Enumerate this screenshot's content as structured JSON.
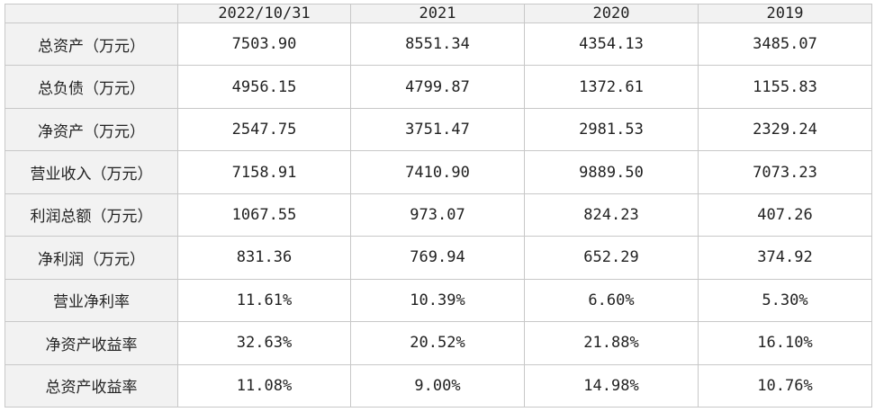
{
  "table": {
    "corner": "",
    "columns": [
      "2022/10/31",
      "2021",
      "2020",
      "2019"
    ],
    "rows": [
      {
        "label": "总资产（万元）",
        "values": [
          "7503.90",
          "8551.34",
          "4354.13",
          "3485.07"
        ]
      },
      {
        "label": "总负债（万元）",
        "values": [
          "4956.15",
          "4799.87",
          "1372.61",
          "1155.83"
        ]
      },
      {
        "label": "净资产（万元）",
        "values": [
          "2547.75",
          "3751.47",
          "2981.53",
          "2329.24"
        ]
      },
      {
        "label": "营业收入（万元）",
        "values": [
          "7158.91",
          "7410.90",
          "9889.50",
          "7073.23"
        ]
      },
      {
        "label": "利润总额（万元）",
        "values": [
          "1067.55",
          "973.07",
          "824.23",
          "407.26"
        ]
      },
      {
        "label": "净利润（万元）",
        "values": [
          "831.36",
          "769.94",
          "652.29",
          "374.92"
        ]
      },
      {
        "label": "营业净利率",
        "values": [
          "11.61%",
          "10.39%",
          "6.60%",
          "5.30%"
        ]
      },
      {
        "label": "净资产收益率",
        "values": [
          "32.63%",
          "20.52%",
          "21.88%",
          "16.10%"
        ]
      },
      {
        "label": "总资产收益率",
        "values": [
          "11.08%",
          "9.00%",
          "14.98%",
          "10.76%"
        ]
      }
    ]
  }
}
